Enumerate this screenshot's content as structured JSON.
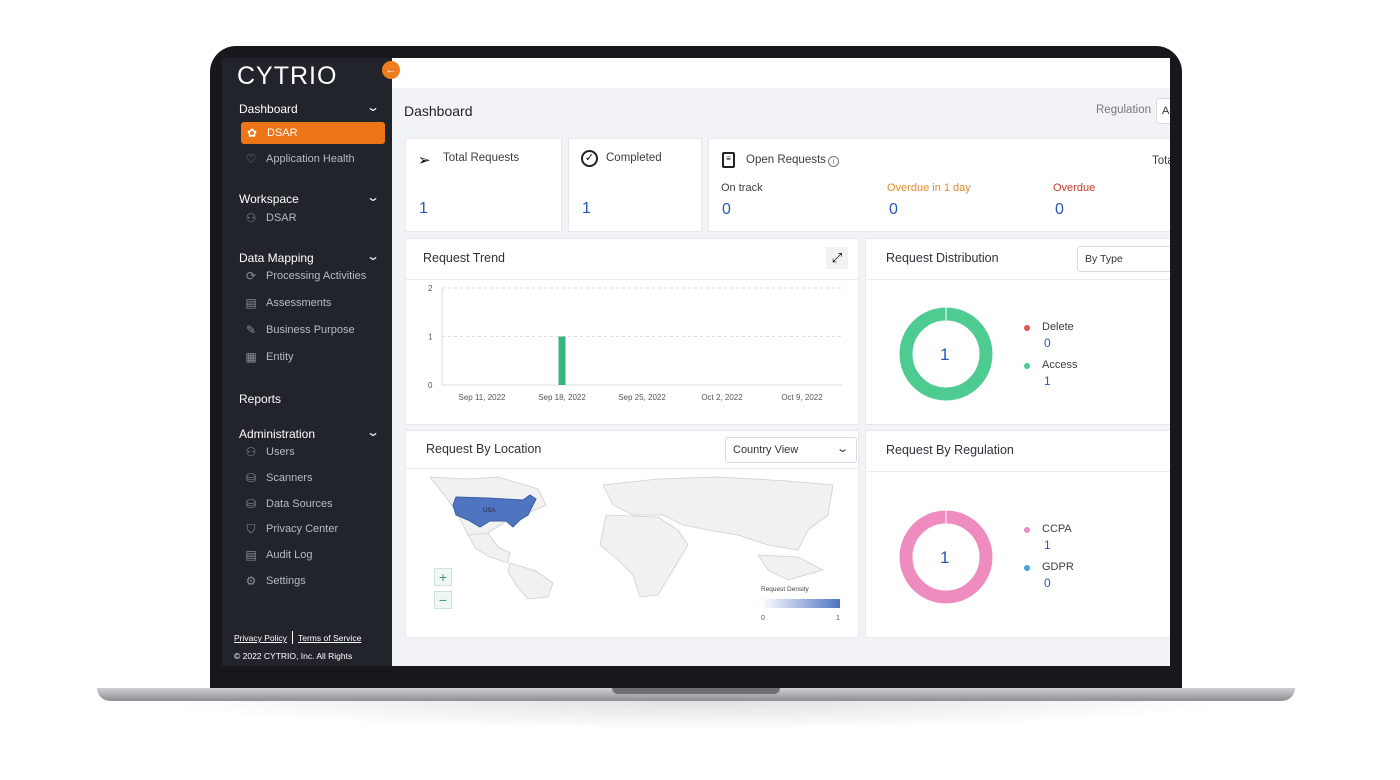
{
  "brand": {
    "logo": "CYTRIO",
    "accent": "#ee7418"
  },
  "sidebar": {
    "sections": [
      {
        "label": "Dashboard",
        "items": [
          {
            "label": "DSAR",
            "icon": "dsar-icon",
            "active": true
          },
          {
            "label": "Application Health",
            "icon": "heart-icon"
          }
        ]
      },
      {
        "label": "Workspace",
        "items": [
          {
            "label": "DSAR",
            "icon": "user-check-icon"
          }
        ]
      },
      {
        "label": "Data Mapping",
        "items": [
          {
            "label": "Processing Activities",
            "icon": "sync-icon"
          },
          {
            "label": "Assessments",
            "icon": "document-icon"
          },
          {
            "label": "Business Purpose",
            "icon": "edit-document-icon"
          },
          {
            "label": "Entity",
            "icon": "building-icon"
          }
        ]
      },
      {
        "label": "Reports",
        "items": []
      },
      {
        "label": "Administration",
        "items": [
          {
            "label": "Users",
            "icon": "users-icon"
          },
          {
            "label": "Scanners",
            "icon": "scanner-icon"
          },
          {
            "label": "Data Sources",
            "icon": "database-icon"
          },
          {
            "label": "Privacy Center",
            "icon": "shield-icon"
          },
          {
            "label": "Audit Log",
            "icon": "audit-icon"
          },
          {
            "label": "Settings",
            "icon": "gear-icon"
          }
        ]
      }
    ],
    "footer": {
      "privacy": "Privacy Policy",
      "terms": "Terms of Service",
      "copyright": "© 2022 CYTRIO, Inc. All Rights"
    }
  },
  "header": {
    "title": "Dashboard",
    "regulation_label": "Regulation",
    "regulation_value": "A"
  },
  "stats": {
    "total": {
      "label": "Total Requests",
      "value": "1"
    },
    "completed": {
      "label": "Completed",
      "value": "1"
    },
    "open": {
      "label": "Open Requests",
      "right_label": "Tota",
      "on_track": {
        "label": "On track",
        "value": "0"
      },
      "overdue_1day": {
        "label": "Overdue in 1 day",
        "value": "0",
        "color": "#e08a2c"
      },
      "overdue": {
        "label": "Overdue",
        "value": "0",
        "color": "#c0392b"
      }
    }
  },
  "trend": {
    "title": "Request Trend"
  },
  "distribution": {
    "title": "Request Distribution",
    "select": "By Type",
    "center": "1",
    "legend": [
      {
        "label": "Delete",
        "value": "0",
        "color": "#e05555"
      },
      {
        "label": "Access",
        "value": "1",
        "color": "#4ecb91"
      }
    ]
  },
  "location": {
    "title": "Request By Location",
    "select": "Country View",
    "country_label": "USA",
    "legend_title": "Request Density",
    "legend_min": "0",
    "legend_max": "1",
    "zoom_in": "+",
    "zoom_out": "−"
  },
  "regulation": {
    "title": "Request By Regulation",
    "center": "1",
    "legend": [
      {
        "label": "CCPA",
        "value": "1",
        "color": "#ee8cc0"
      },
      {
        "label": "GDPR",
        "value": "0",
        "color": "#3aa7e0"
      }
    ]
  },
  "chart_data": [
    {
      "type": "bar",
      "title": "Request Trend",
      "categories": [
        "Sep 11, 2022",
        "Sep 18, 2022",
        "Sep 25, 2022",
        "Oct 2, 2022",
        "Oct 9, 2022"
      ],
      "values": [
        0,
        1,
        0,
        0,
        0
      ],
      "ylim": [
        0,
        2
      ],
      "yticks": [
        "0",
        "1",
        "2"
      ],
      "grid": true,
      "color": "#36b37e"
    },
    {
      "type": "pie",
      "title": "Request Distribution",
      "categories": [
        "Delete",
        "Access"
      ],
      "values": [
        0,
        1
      ],
      "colors": [
        "#e05555",
        "#4ecb91"
      ]
    },
    {
      "type": "pie",
      "title": "Request By Regulation",
      "categories": [
        "CCPA",
        "GDPR"
      ],
      "values": [
        1,
        0
      ],
      "colors": [
        "#ee8cc0",
        "#3aa7e0"
      ]
    }
  ]
}
